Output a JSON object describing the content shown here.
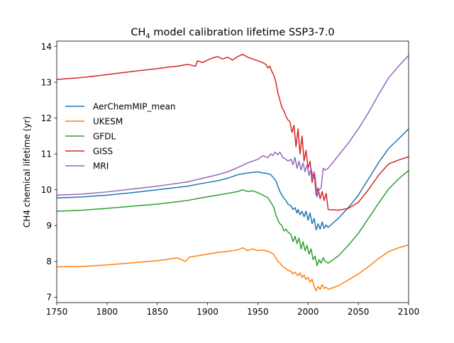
{
  "chart_data": {
    "type": "line",
    "title": {
      "prefix": "CH",
      "subscript": "4",
      "suffix": " model calibration lifetime SSP3-7.0"
    },
    "xlabel": "",
    "ylabel": "CH4 chemical lifetime (yr)",
    "xlim": [
      1750,
      2100
    ],
    "ylim": [
      6.85,
      14.15
    ],
    "xticks": [
      1750,
      1800,
      1850,
      1900,
      1950,
      2000,
      2050,
      2100
    ],
    "yticks": [
      7,
      8,
      9,
      10,
      11,
      12,
      13,
      14
    ],
    "grid": false,
    "legend_position": "center-left",
    "series": [
      {
        "name": "AerChemMIP_mean",
        "color": "#1f77b4",
        "points": [
          [
            1750,
            9.77
          ],
          [
            1775,
            9.8
          ],
          [
            1800,
            9.85
          ],
          [
            1825,
            9.92
          ],
          [
            1850,
            10.0
          ],
          [
            1865,
            10.05
          ],
          [
            1880,
            10.1
          ],
          [
            1895,
            10.18
          ],
          [
            1910,
            10.25
          ],
          [
            1920,
            10.32
          ],
          [
            1930,
            10.42
          ],
          [
            1940,
            10.47
          ],
          [
            1950,
            10.5
          ],
          [
            1955,
            10.47
          ],
          [
            1960,
            10.45
          ],
          [
            1963,
            10.42
          ],
          [
            1965,
            10.35
          ],
          [
            1968,
            10.25
          ],
          [
            1970,
            10.1
          ],
          [
            1972,
            9.95
          ],
          [
            1975,
            9.8
          ],
          [
            1978,
            9.7
          ],
          [
            1980,
            9.6
          ],
          [
            1983,
            9.55
          ],
          [
            1985,
            9.45
          ],
          [
            1987,
            9.5
          ],
          [
            1989,
            9.35
          ],
          [
            1990,
            9.45
          ],
          [
            1992,
            9.3
          ],
          [
            1994,
            9.4
          ],
          [
            1996,
            9.25
          ],
          [
            1998,
            9.4
          ],
          [
            2000,
            9.15
          ],
          [
            2002,
            9.35
          ],
          [
            2004,
            9.05
          ],
          [
            2006,
            9.2
          ],
          [
            2008,
            8.88
          ],
          [
            2010,
            9.05
          ],
          [
            2012,
            8.9
          ],
          [
            2014,
            9.1
          ],
          [
            2016,
            8.92
          ],
          [
            2018,
            9.02
          ],
          [
            2020,
            8.95
          ],
          [
            2030,
            9.2
          ],
          [
            2040,
            9.5
          ],
          [
            2050,
            9.85
          ],
          [
            2060,
            10.3
          ],
          [
            2070,
            10.75
          ],
          [
            2080,
            11.15
          ],
          [
            2090,
            11.42
          ],
          [
            2100,
            11.7
          ]
        ]
      },
      {
        "name": "UKESM",
        "color": "#ff7f0e",
        "points": [
          [
            1750,
            7.85
          ],
          [
            1775,
            7.86
          ],
          [
            1800,
            7.9
          ],
          [
            1825,
            7.96
          ],
          [
            1850,
            8.02
          ],
          [
            1860,
            8.06
          ],
          [
            1870,
            8.1
          ],
          [
            1878,
            8.0
          ],
          [
            1882,
            8.12
          ],
          [
            1895,
            8.18
          ],
          [
            1910,
            8.25
          ],
          [
            1920,
            8.28
          ],
          [
            1930,
            8.32
          ],
          [
            1935,
            8.38
          ],
          [
            1940,
            8.3
          ],
          [
            1945,
            8.35
          ],
          [
            1950,
            8.3
          ],
          [
            1955,
            8.32
          ],
          [
            1960,
            8.28
          ],
          [
            1965,
            8.22
          ],
          [
            1968,
            8.1
          ],
          [
            1970,
            8.0
          ],
          [
            1972,
            7.95
          ],
          [
            1975,
            7.85
          ],
          [
            1978,
            7.8
          ],
          [
            1980,
            7.75
          ],
          [
            1983,
            7.72
          ],
          [
            1985,
            7.65
          ],
          [
            1987,
            7.7
          ],
          [
            1990,
            7.6
          ],
          [
            1992,
            7.68
          ],
          [
            1994,
            7.55
          ],
          [
            1996,
            7.62
          ],
          [
            1998,
            7.5
          ],
          [
            2000,
            7.55
          ],
          [
            2002,
            7.42
          ],
          [
            2004,
            7.5
          ],
          [
            2006,
            7.3
          ],
          [
            2008,
            7.18
          ],
          [
            2010,
            7.3
          ],
          [
            2012,
            7.22
          ],
          [
            2014,
            7.35
          ],
          [
            2016,
            7.25
          ],
          [
            2018,
            7.28
          ],
          [
            2020,
            7.22
          ],
          [
            2030,
            7.32
          ],
          [
            2040,
            7.48
          ],
          [
            2050,
            7.65
          ],
          [
            2060,
            7.85
          ],
          [
            2070,
            8.08
          ],
          [
            2080,
            8.27
          ],
          [
            2090,
            8.38
          ],
          [
            2100,
            8.46
          ]
        ]
      },
      {
        "name": "GFDL",
        "color": "#2ca02c",
        "points": [
          [
            1750,
            9.4
          ],
          [
            1775,
            9.43
          ],
          [
            1800,
            9.48
          ],
          [
            1825,
            9.54
          ],
          [
            1850,
            9.6
          ],
          [
            1865,
            9.65
          ],
          [
            1880,
            9.7
          ],
          [
            1895,
            9.78
          ],
          [
            1910,
            9.85
          ],
          [
            1920,
            9.9
          ],
          [
            1930,
            9.95
          ],
          [
            1935,
            10.0
          ],
          [
            1940,
            9.95
          ],
          [
            1945,
            9.97
          ],
          [
            1950,
            9.92
          ],
          [
            1955,
            9.85
          ],
          [
            1960,
            9.78
          ],
          [
            1963,
            9.65
          ],
          [
            1966,
            9.5
          ],
          [
            1968,
            9.3
          ],
          [
            1970,
            9.15
          ],
          [
            1972,
            9.05
          ],
          [
            1974,
            9.0
          ],
          [
            1976,
            8.85
          ],
          [
            1978,
            8.9
          ],
          [
            1980,
            8.82
          ],
          [
            1983,
            8.75
          ],
          [
            1985,
            8.55
          ],
          [
            1987,
            8.7
          ],
          [
            1989,
            8.5
          ],
          [
            1991,
            8.65
          ],
          [
            1993,
            8.35
          ],
          [
            1995,
            8.55
          ],
          [
            1997,
            8.3
          ],
          [
            1999,
            8.45
          ],
          [
            2001,
            8.2
          ],
          [
            2003,
            8.35
          ],
          [
            2005,
            8.05
          ],
          [
            2007,
            8.15
          ],
          [
            2009,
            7.88
          ],
          [
            2011,
            8.05
          ],
          [
            2013,
            7.95
          ],
          [
            2015,
            8.1
          ],
          [
            2017,
            8.0
          ],
          [
            2020,
            7.95
          ],
          [
            2030,
            8.15
          ],
          [
            2040,
            8.45
          ],
          [
            2050,
            8.78
          ],
          [
            2060,
            9.2
          ],
          [
            2070,
            9.62
          ],
          [
            2080,
            10.02
          ],
          [
            2090,
            10.3
          ],
          [
            2100,
            10.54
          ]
        ]
      },
      {
        "name": "GISS",
        "color": "#d62728",
        "points": [
          [
            1750,
            13.08
          ],
          [
            1770,
            13.12
          ],
          [
            1790,
            13.18
          ],
          [
            1810,
            13.25
          ],
          [
            1830,
            13.32
          ],
          [
            1850,
            13.38
          ],
          [
            1860,
            13.42
          ],
          [
            1870,
            13.45
          ],
          [
            1880,
            13.5
          ],
          [
            1888,
            13.45
          ],
          [
            1890,
            13.6
          ],
          [
            1895,
            13.55
          ],
          [
            1900,
            13.62
          ],
          [
            1905,
            13.68
          ],
          [
            1910,
            13.72
          ],
          [
            1915,
            13.65
          ],
          [
            1920,
            13.7
          ],
          [
            1925,
            13.62
          ],
          [
            1930,
            13.72
          ],
          [
            1935,
            13.78
          ],
          [
            1940,
            13.7
          ],
          [
            1945,
            13.65
          ],
          [
            1950,
            13.6
          ],
          [
            1955,
            13.55
          ],
          [
            1958,
            13.5
          ],
          [
            1960,
            13.4
          ],
          [
            1962,
            13.45
          ],
          [
            1964,
            13.3
          ],
          [
            1966,
            13.2
          ],
          [
            1968,
            13.0
          ],
          [
            1970,
            12.7
          ],
          [
            1972,
            12.5
          ],
          [
            1974,
            12.3
          ],
          [
            1976,
            12.2
          ],
          [
            1978,
            12.05
          ],
          [
            1980,
            11.95
          ],
          [
            1982,
            11.9
          ],
          [
            1984,
            11.6
          ],
          [
            1986,
            11.8
          ],
          [
            1988,
            11.2
          ],
          [
            1990,
            11.7
          ],
          [
            1992,
            11.0
          ],
          [
            1994,
            11.5
          ],
          [
            1996,
            10.8
          ],
          [
            1998,
            11.1
          ],
          [
            2000,
            10.6
          ],
          [
            2002,
            10.8
          ],
          [
            2004,
            10.2
          ],
          [
            2006,
            10.5
          ],
          [
            2008,
            9.85
          ],
          [
            2010,
            10.05
          ],
          [
            2012,
            9.75
          ],
          [
            2014,
            9.95
          ],
          [
            2016,
            9.7
          ],
          [
            2018,
            9.9
          ],
          [
            2020,
            9.45
          ],
          [
            2030,
            9.43
          ],
          [
            2040,
            9.48
          ],
          [
            2050,
            9.65
          ],
          [
            2060,
            10.0
          ],
          [
            2070,
            10.4
          ],
          [
            2080,
            10.72
          ],
          [
            2090,
            10.83
          ],
          [
            2100,
            10.92
          ]
        ]
      },
      {
        "name": "MRI",
        "color": "#9467bd",
        "points": [
          [
            1750,
            9.85
          ],
          [
            1775,
            9.88
          ],
          [
            1800,
            9.94
          ],
          [
            1825,
            10.02
          ],
          [
            1850,
            10.1
          ],
          [
            1865,
            10.16
          ],
          [
            1880,
            10.22
          ],
          [
            1895,
            10.32
          ],
          [
            1910,
            10.42
          ],
          [
            1920,
            10.5
          ],
          [
            1930,
            10.62
          ],
          [
            1940,
            10.75
          ],
          [
            1950,
            10.85
          ],
          [
            1955,
            10.95
          ],
          [
            1960,
            10.9
          ],
          [
            1963,
            11.0
          ],
          [
            1965,
            10.95
          ],
          [
            1967,
            11.05
          ],
          [
            1970,
            10.98
          ],
          [
            1972,
            11.05
          ],
          [
            1975,
            10.9
          ],
          [
            1978,
            10.85
          ],
          [
            1980,
            10.8
          ],
          [
            1983,
            10.85
          ],
          [
            1985,
            10.7
          ],
          [
            1987,
            10.9
          ],
          [
            1989,
            10.6
          ],
          [
            1991,
            10.8
          ],
          [
            1993,
            10.55
          ],
          [
            1995,
            10.75
          ],
          [
            1997,
            10.5
          ],
          [
            1999,
            10.7
          ],
          [
            2001,
            10.4
          ],
          [
            2003,
            10.6
          ],
          [
            2005,
            10.3
          ],
          [
            2007,
            10.4
          ],
          [
            2009,
            9.8
          ],
          [
            2011,
            10.0
          ],
          [
            2013,
            10.05
          ],
          [
            2015,
            10.6
          ],
          [
            2017,
            10.55
          ],
          [
            2020,
            10.6
          ],
          [
            2030,
            10.95
          ],
          [
            2040,
            11.3
          ],
          [
            2050,
            11.7
          ],
          [
            2060,
            12.15
          ],
          [
            2070,
            12.65
          ],
          [
            2080,
            13.12
          ],
          [
            2090,
            13.45
          ],
          [
            2100,
            13.75
          ]
        ]
      }
    ]
  }
}
